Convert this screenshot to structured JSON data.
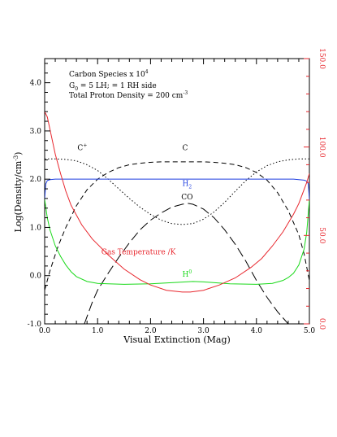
{
  "chart_data": {
    "type": "line",
    "xlabel": "Visual Extinction (Mag)",
    "ylabel": "Log(Density/cm",
    "ylabel_sup": "-3",
    "ylabel_tail": ")",
    "xlim": [
      0.0,
      5.0
    ],
    "ylim": [
      -1.0,
      4.5
    ],
    "y2lim": [
      0.0,
      150.0
    ],
    "x_ticks": [
      "0.0",
      "1.0",
      "2.0",
      "3.0",
      "4.0",
      "5.0"
    ],
    "y_ticks": [
      "-1.0",
      "0.0",
      "1.0",
      "2.0",
      "3.0",
      "4.0"
    ],
    "y2_ticks": [
      "0.0",
      "50.0",
      "100.0",
      "150.0"
    ],
    "annotations": {
      "line1": "Carbon Species x 10",
      "line1_sup": "4",
      "line2_a": "G",
      "line2_sub": "0",
      "line2_b": " = 5 LH;  = 1 RH side",
      "line3": "Total Proton Density = 200 cm",
      "line3_sup": "-3"
    },
    "colors": {
      "axis": "#000000",
      "right_axis": "#e8262d",
      "H2": "#1f3fe0",
      "H0": "#19d919",
      "temperature": "#e8262d",
      "carbon": "#000000"
    },
    "series": [
      {
        "name": "C",
        "sup": "+",
        "style": "dotted",
        "axis": "left",
        "label_at": [
          0.62,
          2.6
        ],
        "x": [
          0.0,
          0.2,
          0.4,
          0.6,
          0.8,
          1.0,
          1.2,
          1.4,
          1.6,
          1.8,
          2.0,
          2.2,
          2.4,
          2.6,
          2.8,
          3.0,
          3.2,
          3.4,
          3.6,
          3.8,
          4.0,
          4.2,
          4.4,
          4.6,
          4.8,
          5.0
        ],
        "y": [
          2.42,
          2.42,
          2.41,
          2.38,
          2.3,
          2.18,
          2.0,
          1.8,
          1.6,
          1.42,
          1.27,
          1.15,
          1.08,
          1.06,
          1.08,
          1.17,
          1.32,
          1.52,
          1.75,
          1.97,
          2.15,
          2.28,
          2.36,
          2.4,
          2.42,
          2.42
        ]
      },
      {
        "name": "C",
        "style": "dashed",
        "axis": "left",
        "label_at": [
          2.6,
          2.6
        ],
        "x": [
          0.0,
          0.1,
          0.25,
          0.4,
          0.6,
          0.8,
          1.0,
          1.2,
          1.4,
          1.6,
          1.8,
          2.0,
          2.2,
          2.4,
          2.6,
          2.8,
          3.0,
          3.2,
          3.4,
          3.6,
          3.8,
          4.0,
          4.2,
          4.4,
          4.6,
          4.8,
          4.9,
          5.0
        ],
        "y": [
          -0.3,
          0.1,
          0.6,
          1.0,
          1.45,
          1.78,
          2.0,
          2.14,
          2.24,
          2.3,
          2.33,
          2.35,
          2.36,
          2.36,
          2.36,
          2.36,
          2.36,
          2.35,
          2.33,
          2.3,
          2.24,
          2.14,
          1.98,
          1.72,
          1.35,
          0.85,
          0.45,
          -0.1
        ]
      },
      {
        "name": "CO",
        "style": "longdash",
        "axis": "left",
        "label_at": [
          2.58,
          1.58
        ],
        "x": [
          0.75,
          0.9,
          1.0,
          1.2,
          1.4,
          1.6,
          1.8,
          2.0,
          2.2,
          2.4,
          2.6,
          2.7,
          2.8,
          3.0,
          3.2,
          3.4,
          3.6,
          3.8,
          4.0,
          4.2,
          4.4,
          4.6
        ],
        "y": [
          -1.0,
          -0.55,
          -0.3,
          0.05,
          0.38,
          0.68,
          0.95,
          1.15,
          1.3,
          1.42,
          1.48,
          1.5,
          1.48,
          1.38,
          1.2,
          0.95,
          0.65,
          0.3,
          -0.1,
          -0.45,
          -0.75,
          -1.0
        ]
      },
      {
        "name": "H",
        "sub": "2",
        "style": "solid",
        "color": "#1f3fe0",
        "axis": "left",
        "label_at": [
          2.6,
          1.86
        ],
        "x": [
          0.0,
          0.02,
          0.05,
          0.1,
          0.2,
          0.3,
          1.0,
          2.0,
          3.0,
          4.0,
          4.7,
          4.8,
          4.9,
          4.95,
          4.98,
          5.0
        ],
        "y": [
          1.58,
          1.9,
          1.97,
          1.99,
          2.0,
          2.0,
          2.0,
          2.0,
          2.0,
          2.0,
          2.0,
          1.99,
          1.98,
          1.96,
          1.9,
          1.58
        ]
      },
      {
        "name": "H",
        "sup": "0",
        "style": "solid",
        "color": "#19d919",
        "axis": "left",
        "label_at": [
          2.6,
          -0.02
        ],
        "x": [
          0.0,
          0.05,
          0.1,
          0.2,
          0.3,
          0.4,
          0.5,
          0.6,
          0.8,
          1.0,
          1.2,
          1.5,
          2.0,
          2.5,
          2.8,
          3.0,
          3.5,
          4.0,
          4.3,
          4.5,
          4.6,
          4.7,
          4.8,
          4.9,
          4.95,
          5.0
        ],
        "y": [
          1.58,
          1.2,
          0.95,
          0.62,
          0.4,
          0.22,
          0.08,
          -0.02,
          -0.12,
          -0.16,
          -0.17,
          -0.18,
          -0.17,
          -0.14,
          -0.12,
          -0.13,
          -0.17,
          -0.18,
          -0.16,
          -0.1,
          -0.04,
          0.05,
          0.22,
          0.55,
          0.9,
          1.58
        ]
      },
      {
        "name": "Gas Temperature /K",
        "style": "solid",
        "color": "#e8262d",
        "axis": "right",
        "label_at": [
          1.07,
          0.44
        ],
        "x": [
          0.0,
          0.05,
          0.1,
          0.2,
          0.3,
          0.4,
          0.5,
          0.7,
          0.9,
          1.0,
          1.2,
          1.5,
          1.8,
          2.0,
          2.3,
          2.6,
          2.75,
          3.0,
          3.3,
          3.6,
          3.9,
          4.1,
          4.3,
          4.5,
          4.7,
          4.8,
          4.9,
          4.95,
          5.0
        ],
        "y": [
          120,
          117,
          110,
          96,
          85,
          75,
          67,
          56,
          48,
          45,
          39,
          31,
          25,
          22,
          19,
          18,
          18,
          19,
          22,
          26,
          32,
          37,
          44,
          52,
          62,
          68,
          76,
          80,
          85
        ]
      }
    ]
  }
}
